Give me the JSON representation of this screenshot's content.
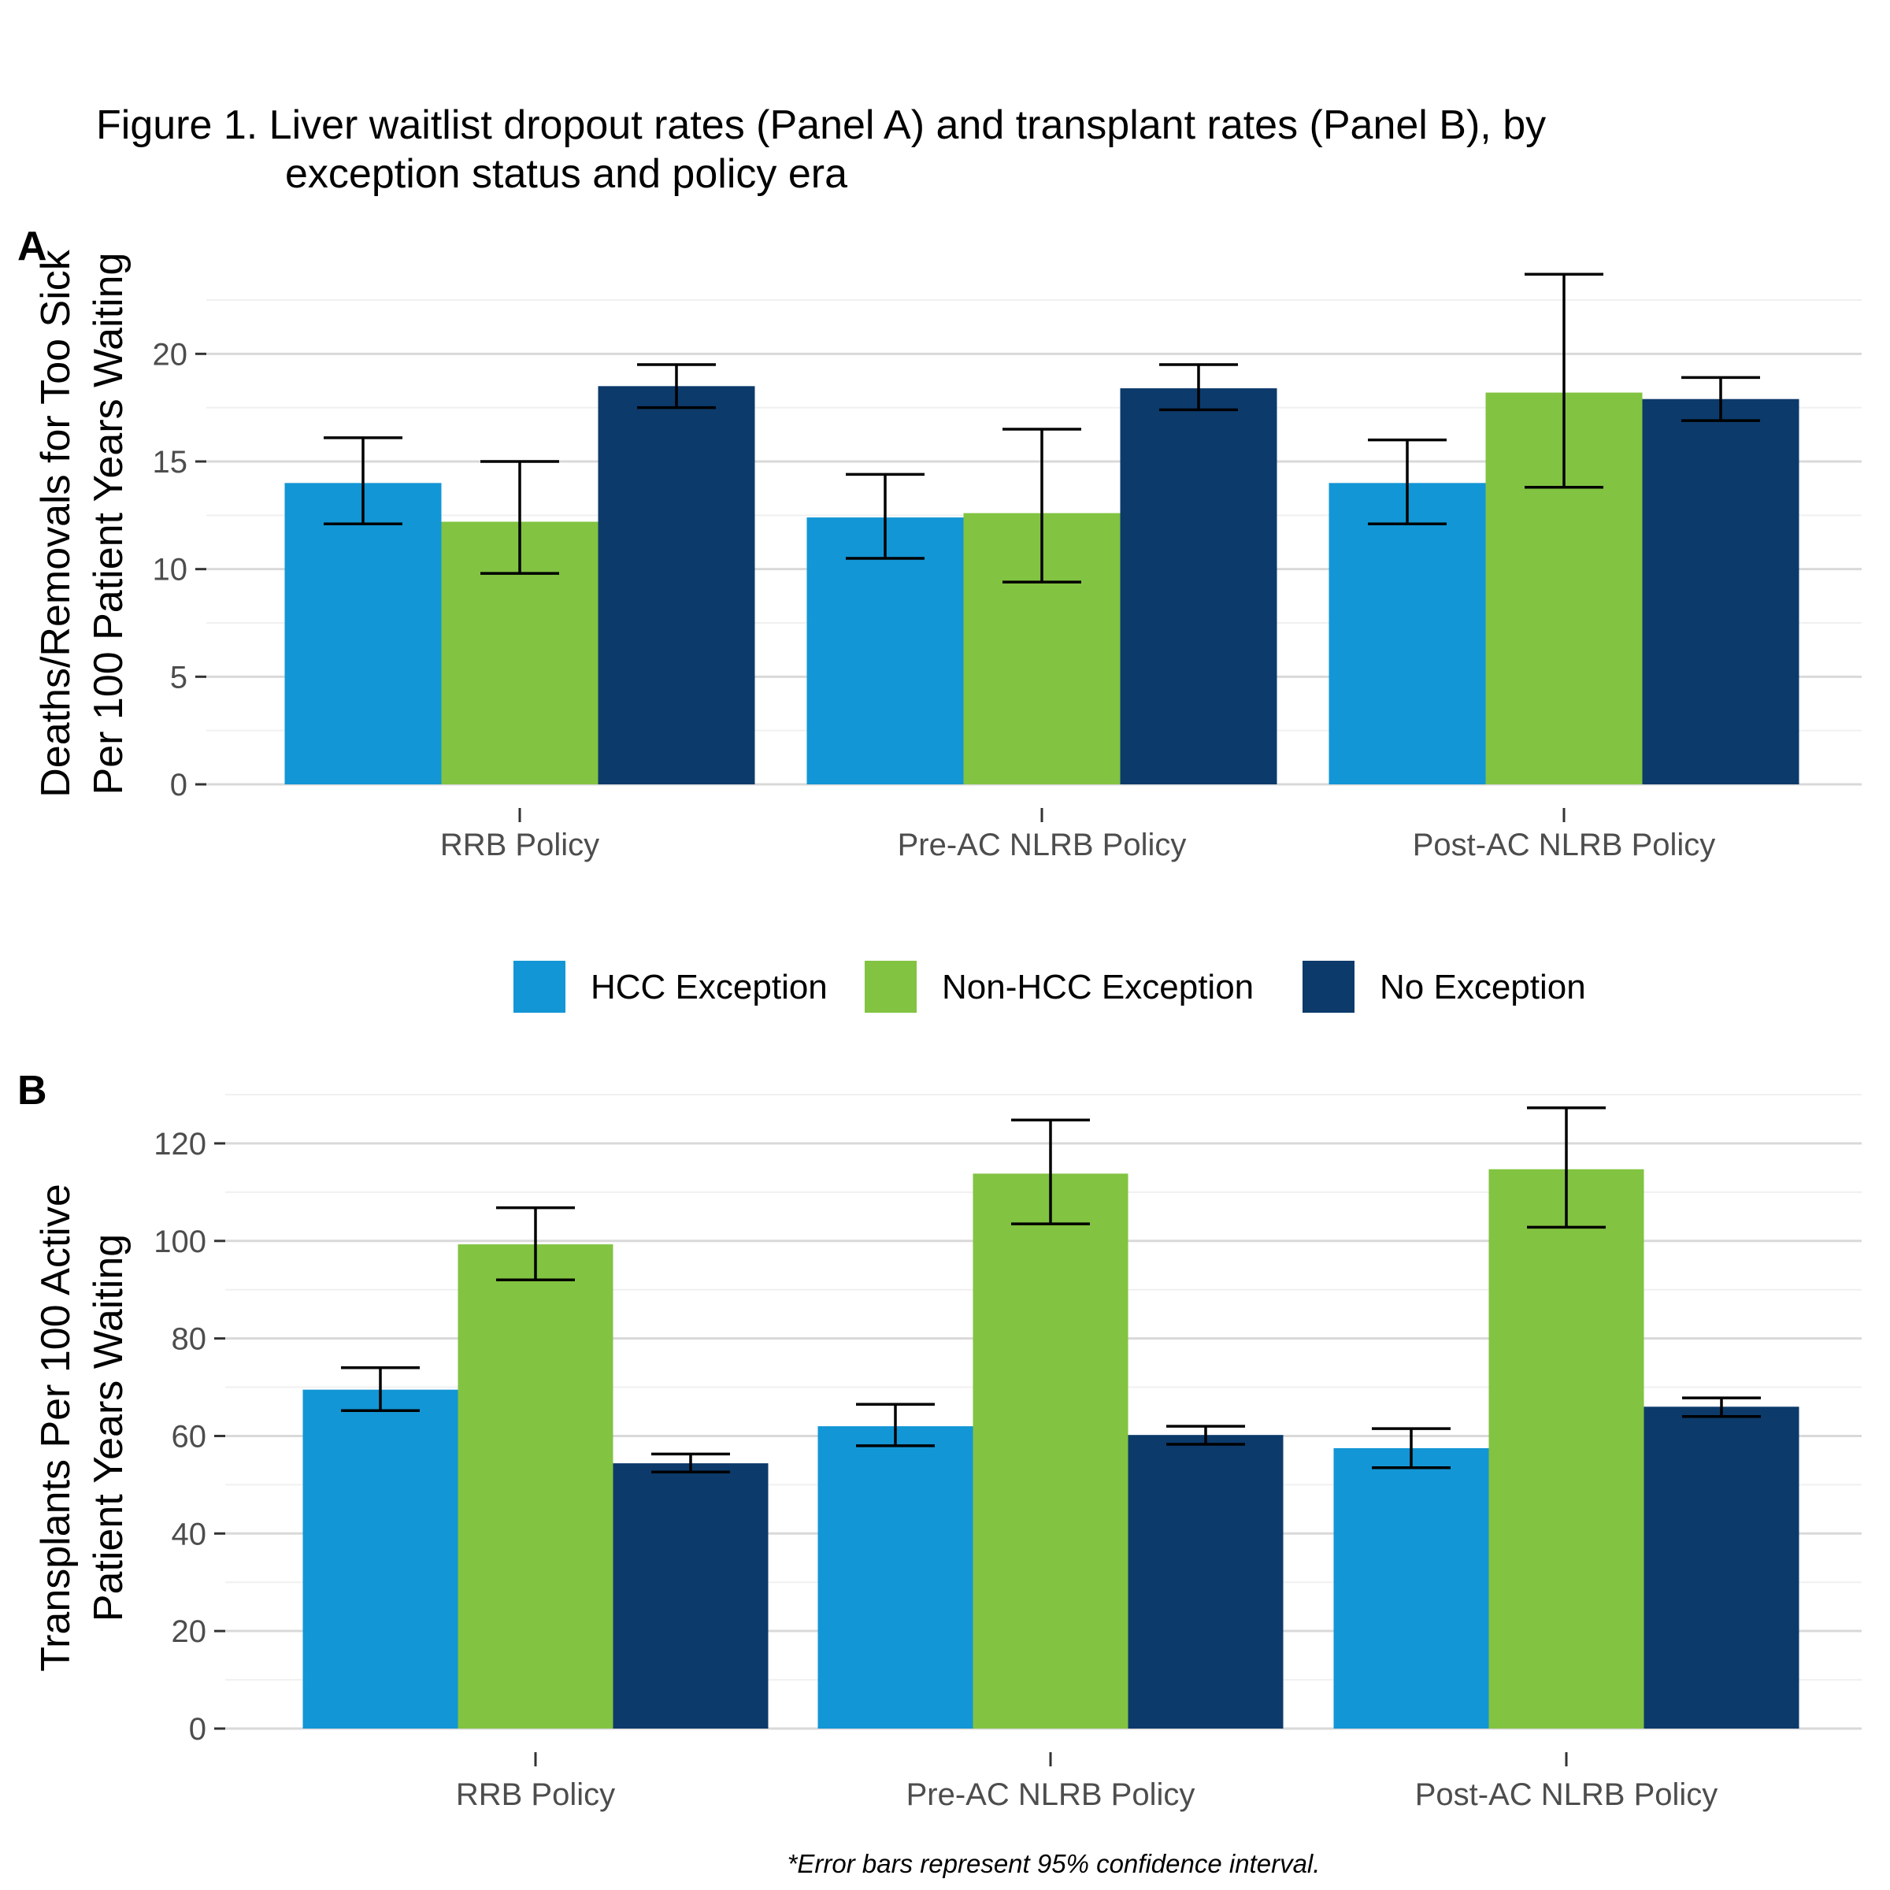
{
  "title_lines": [
    "Figure 1. Liver waitlist dropout rates (Panel A) and transplant rates (Panel B), by",
    "exception status and policy era"
  ],
  "caption": "*Error bars represent 95% confidence interval.",
  "colors": {
    "hcc": "#1396d5",
    "non_hcc": "#82c341",
    "no_exception": "#0c3a6b",
    "grid_major": "#d9d9d9",
    "grid_minor": "#f0f0f0",
    "tick_text": "#4d4d4d"
  },
  "legend": [
    "HCC Exception",
    "Non-HCC Exception",
    "No Exception"
  ],
  "chart_data": [
    {
      "panel": "A",
      "type": "bar",
      "ylabel_lines": [
        "Deaths/Removals for Too Sick",
        "Per 100 Patient Years Waiting"
      ],
      "xlabel": "",
      "categories": [
        "RRB Policy",
        "Pre-AC NLRB Policy",
        "Post-AC NLRB Policy"
      ],
      "ylim": [
        0,
        24
      ],
      "yticks": [
        0,
        5,
        10,
        15,
        20
      ],
      "grid": true,
      "series": [
        {
          "name": "HCC Exception",
          "values": [
            14.0,
            12.4,
            14.0
          ],
          "ci_low": [
            12.1,
            10.5,
            12.1
          ],
          "ci_high": [
            16.1,
            14.4,
            16.0
          ]
        },
        {
          "name": "Non-HCC Exception",
          "values": [
            12.2,
            12.6,
            18.2
          ],
          "ci_low": [
            9.8,
            9.4,
            13.8
          ],
          "ci_high": [
            15.0,
            16.5,
            23.7
          ]
        },
        {
          "name": "No Exception",
          "values": [
            18.5,
            18.4,
            17.9
          ],
          "ci_low": [
            17.5,
            17.4,
            16.9
          ],
          "ci_high": [
            19.5,
            19.5,
            18.9
          ]
        }
      ]
    },
    {
      "panel": "B",
      "type": "bar",
      "ylabel_lines": [
        "Transplants Per 100 Active",
        "Patient Years Waiting"
      ],
      "xlabel": "",
      "categories": [
        "RRB Policy",
        "Pre-AC NLRB Policy",
        "Post-AC NLRB Policy"
      ],
      "ylim": [
        0,
        130
      ],
      "yticks": [
        0,
        20,
        40,
        60,
        80,
        100,
        120
      ],
      "grid": true,
      "series": [
        {
          "name": "HCC Exception",
          "values": [
            69.5,
            62.0,
            57.5
          ],
          "ci_low": [
            65.2,
            58.0,
            53.5
          ],
          "ci_high": [
            74.0,
            66.5,
            61.5
          ]
        },
        {
          "name": "Non-HCC Exception",
          "values": [
            99.3,
            113.8,
            114.7
          ],
          "ci_low": [
            92.0,
            103.5,
            102.8
          ],
          "ci_high": [
            106.8,
            124.8,
            127.3
          ]
        },
        {
          "name": "No Exception",
          "values": [
            54.4,
            60.2,
            66.0
          ],
          "ci_low": [
            52.6,
            58.3,
            64.0
          ],
          "ci_high": [
            56.3,
            62.0,
            67.8
          ]
        }
      ]
    }
  ]
}
